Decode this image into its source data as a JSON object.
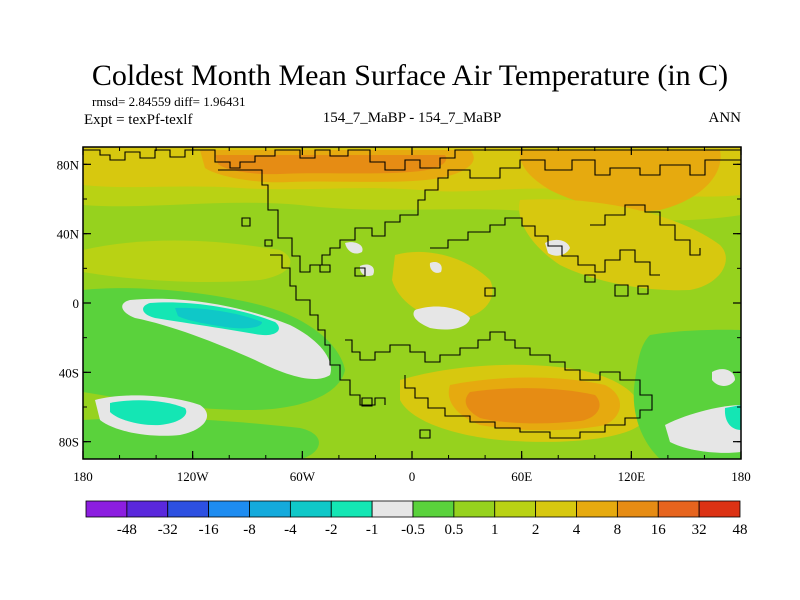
{
  "chart_data": {
    "type": "heatmap",
    "title": "Coldest Month Mean Surface Air Temperature (in C)",
    "stats_line": "rmsd= 2.84559 diff= 1.96431",
    "expt_line": "Expt = texPf-texlf",
    "center_label": "154_7_MaBP - 154_7_MaBP",
    "right_label": "ANN",
    "x_ticks": [
      "180",
      "120W",
      "60W",
      "0",
      "60E",
      "120E",
      "180"
    ],
    "y_ticks": [
      "80N",
      "40N",
      "0",
      "40S",
      "80S"
    ],
    "x_range": [
      -180,
      180
    ],
    "y_range": [
      -90,
      90
    ],
    "colorbar": {
      "colors": [
        "#8c1ee0",
        "#5a28dc",
        "#2d50e1",
        "#1e8cf0",
        "#14aadc",
        "#0fc8c8",
        "#14e6b4",
        "#e6e6e6",
        "#5ad23c",
        "#96d21e",
        "#b9d214",
        "#d7c80f",
        "#e6aa0f",
        "#e68c14",
        "#e6641e",
        "#dc3214"
      ],
      "labels": [
        "-48",
        "-32",
        "-16",
        "-8",
        "-4",
        "-2",
        "-1",
        "-0.5",
        "0.5",
        "1",
        "2",
        "4",
        "8",
        "16",
        "32",
        "48"
      ]
    },
    "regions": [
      {
        "level": "1",
        "color": "#96d21e"
      },
      {
        "level": "2",
        "color": "#b9d214"
      },
      {
        "level": "4",
        "color": "#d7c80f"
      },
      {
        "level": "8",
        "color": "#e6aa0f"
      },
      {
        "level": "16",
        "color": "#e68c14"
      },
      {
        "level": "0.5",
        "color": "#5ad23c"
      },
      {
        "level": "-0.5",
        "color": "#e6e6e6"
      },
      {
        "level": "-1",
        "color": "#14e6b4"
      },
      {
        "level": "-2",
        "color": "#0fc8c8"
      }
    ]
  }
}
